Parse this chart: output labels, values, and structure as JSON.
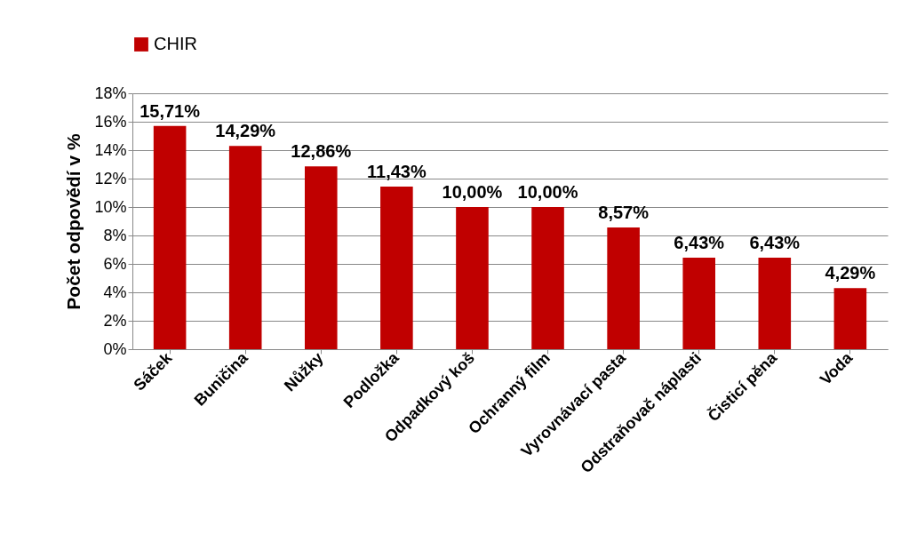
{
  "chart_data": {
    "type": "bar",
    "categories": [
      "Sáček",
      "Buničina",
      "Nůžky",
      "Podložka",
      "Odpadkový koš",
      "Ochranný film",
      "Vyrovnávací pasta",
      "Odstraňovač náplasti",
      "Čisticí pěna",
      "Voda"
    ],
    "series": [
      {
        "name": "CHIR",
        "color": "#c00000",
        "values": [
          15.71,
          14.29,
          12.86,
          11.43,
          10.0,
          10.0,
          8.57,
          6.43,
          6.43,
          4.29
        ],
        "value_labels": [
          "15,71%",
          "14,29%",
          "12,86%",
          "11,43%",
          "10,00%",
          "10,00%",
          "8,57%",
          "6,43%",
          "6,43%",
          "4,29%"
        ]
      }
    ],
    "ylabel": "Počet odpovědí v %",
    "ylim": [
      0,
      18
    ],
    "yticks": [
      {
        "value": 0,
        "label": "0%"
      },
      {
        "value": 2,
        "label": "2%"
      },
      {
        "value": 4,
        "label": "4%"
      },
      {
        "value": 6,
        "label": "6%"
      },
      {
        "value": 8,
        "label": "8%"
      },
      {
        "value": 10,
        "label": "10%"
      },
      {
        "value": 12,
        "label": "12%"
      },
      {
        "value": 14,
        "label": "14%"
      },
      {
        "value": 16,
        "label": "16%"
      },
      {
        "value": 18,
        "label": "18%"
      }
    ],
    "grid": "y",
    "legend": "top"
  }
}
